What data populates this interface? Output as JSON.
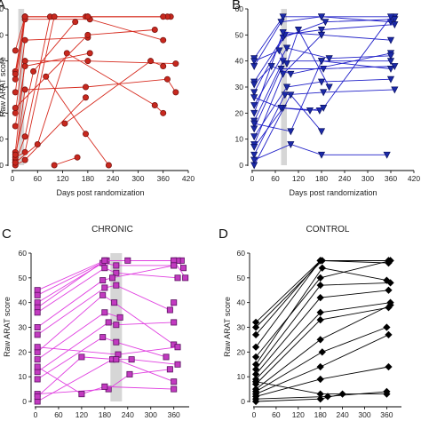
{
  "chart_data": [
    {
      "panel": "A",
      "type": "line",
      "title": "",
      "xlabel": "Days post randomization",
      "ylabel": "Raw ARAT score",
      "xlim": [
        0,
        420
      ],
      "ylim": [
        0,
        60
      ],
      "xticks": [
        0,
        60,
        120,
        180,
        240,
        300,
        360,
        420
      ],
      "yticks": [
        0,
        10,
        20,
        30,
        40,
        50,
        60
      ],
      "shaded_band": [
        14,
        28
      ],
      "marker": "circle",
      "color": "#d62a1e",
      "marker_fill": "#c8281e",
      "marker_edge": "#7a1410",
      "series": [
        {
          "x": [
            7,
            30,
            175,
            378
          ],
          "y": [
            44,
            57,
            57,
            57
          ]
        },
        {
          "x": [
            7,
            30,
            180,
            370
          ],
          "y": [
            36,
            57,
            57,
            57
          ]
        },
        {
          "x": [
            7,
            30,
            180,
            360
          ],
          "y": [
            33,
            57,
            57,
            57
          ]
        },
        {
          "x": [
            7,
            30,
            185,
            360
          ],
          "y": [
            28,
            56,
            56,
            48
          ]
        },
        {
          "x": [
            7,
            30,
            180
          ],
          "y": [
            20,
            48,
            49
          ]
        },
        {
          "x": [
            7,
            30,
            185
          ],
          "y": [
            15,
            38,
            43
          ]
        },
        {
          "x": [
            7,
            30,
            180,
            390
          ],
          "y": [
            5,
            40,
            40,
            39
          ]
        },
        {
          "x": [
            7,
            30,
            175,
            370,
            390
          ],
          "y": [
            2,
            29,
            30,
            33,
            28
          ]
        },
        {
          "x": [
            7,
            30,
            90,
            180
          ],
          "y": [
            1,
            11,
            57,
            57
          ]
        },
        {
          "x": [
            7,
            30,
            100
          ],
          "y": [
            3,
            5,
            57
          ]
        },
        {
          "x": [
            7,
            30
          ],
          "y": [
            35,
            57
          ]
        },
        {
          "x": [
            7,
            30,
            175
          ],
          "y": [
            0,
            2,
            26
          ]
        },
        {
          "x": [
            7,
            60,
            130,
            340,
            360
          ],
          "y": [
            1,
            8,
            43,
            23,
            20
          ]
        },
        {
          "x": [
            7,
            50,
            150
          ],
          "y": [
            4,
            36,
            55
          ]
        },
        {
          "x": [
            80,
            175,
            230
          ],
          "y": [
            34,
            12,
            0
          ]
        },
        {
          "x": [
            100,
            155
          ],
          "y": [
            0,
            3
          ]
        },
        {
          "x": [
            125,
            330,
            360
          ],
          "y": [
            16,
            40,
            38
          ]
        },
        {
          "x": [
            7,
            180,
            340
          ],
          "y": [
            22,
            50,
            52
          ]
        }
      ]
    },
    {
      "panel": "B",
      "type": "line",
      "title": "",
      "xlabel": "Days post randomization",
      "ylabel": "Raw ARAT score",
      "xlim": [
        0,
        420
      ],
      "ylim": [
        0,
        60
      ],
      "xticks": [
        0,
        60,
        120,
        180,
        240,
        300,
        360,
        420
      ],
      "yticks": [
        0,
        10,
        20,
        30,
        40,
        50,
        60
      ],
      "shaded_band": [
        75,
        90
      ],
      "marker": "triangle-down",
      "color": "#2020c8",
      "marker_fill": "#1b2aa8",
      "marker_edge": "#0a1060",
      "series": [
        {
          "x": [
            5,
            80,
            180,
            370
          ],
          "y": [
            41,
            57,
            57,
            57
          ]
        },
        {
          "x": [
            5,
            75,
            180,
            360
          ],
          "y": [
            38,
            55,
            57,
            55
          ]
        },
        {
          "x": [
            5,
            80,
            190,
            370
          ],
          "y": [
            32,
            49,
            55,
            56
          ]
        },
        {
          "x": [
            5,
            85,
            180,
            370
          ],
          "y": [
            28,
            50,
            52,
            54
          ]
        },
        {
          "x": [
            5,
            80,
            180,
            360
          ],
          "y": [
            20,
            51,
            50,
            48
          ]
        },
        {
          "x": [
            5,
            80,
            180,
            360
          ],
          "y": [
            17,
            40,
            40,
            40
          ]
        },
        {
          "x": [
            5,
            75,
            185,
            370
          ],
          "y": [
            14,
            37,
            37,
            38
          ]
        },
        {
          "x": [
            5,
            90,
            180,
            360
          ],
          "y": [
            11,
            30,
            32,
            33
          ]
        },
        {
          "x": [
            5,
            80,
            180
          ],
          "y": [
            8,
            35,
            50
          ]
        },
        {
          "x": [
            5,
            85,
            185,
            370
          ],
          "y": [
            4,
            27,
            28,
            29
          ]
        },
        {
          "x": [
            5,
            100,
            180
          ],
          "y": [
            0,
            27,
            13
          ]
        },
        {
          "x": [
            5,
            80,
            175
          ],
          "y": [
            7,
            22,
            21
          ]
        },
        {
          "x": [
            5,
            100,
            180,
            350
          ],
          "y": [
            2,
            8,
            4,
            4
          ]
        },
        {
          "x": [
            5,
            70,
            90,
            120,
            200
          ],
          "y": [
            40,
            44,
            39,
            52,
            30
          ]
        },
        {
          "x": [
            5,
            50,
            100,
            360
          ],
          "y": [
            31,
            38,
            35,
            43
          ]
        },
        {
          "x": [
            5,
            90,
            200,
            360
          ],
          "y": [
            23,
            45,
            41,
            42
          ]
        },
        {
          "x": [
            5,
            100,
            180,
            360
          ],
          "y": [
            16,
            13,
            40,
            37
          ]
        },
        {
          "x": [
            5,
            75,
            150,
            185,
            360
          ],
          "y": [
            26,
            22,
            21,
            22,
            57
          ]
        }
      ]
    },
    {
      "panel": "C",
      "title": "CHRONIC",
      "type": "line",
      "xlabel": "",
      "ylabel": "Raw ARAT score",
      "xlim": [
        0,
        400
      ],
      "ylim": [
        0,
        60
      ],
      "xticks": [
        0,
        60,
        120,
        180,
        240,
        300,
        360
      ],
      "yticks": [
        0,
        10,
        20,
        30,
        40,
        50,
        60
      ],
      "shaded_band": [
        195,
        225
      ],
      "marker": "square",
      "color": "#e040e0",
      "marker_fill": "#c23ac0",
      "marker_edge": "#5a1060",
      "series": [
        {
          "x": [
            5,
            180,
            360,
            380
          ],
          "y": [
            45,
            57,
            57,
            57
          ]
        },
        {
          "x": [
            5,
            185,
            370,
            385
          ],
          "y": [
            43,
            57,
            57,
            54
          ]
        },
        {
          "x": [
            5,
            175,
            210,
            360
          ],
          "y": [
            40,
            56,
            55,
            55
          ]
        },
        {
          "x": [
            5,
            180,
            240,
            360,
            390
          ],
          "y": [
            38,
            57,
            57,
            57,
            50
          ]
        },
        {
          "x": [
            5,
            180,
            210,
            370
          ],
          "y": [
            36,
            54,
            52,
            50
          ]
        },
        {
          "x": [
            5,
            175,
            200,
            360
          ],
          "y": [
            30,
            49,
            50,
            55
          ]
        },
        {
          "x": [
            5,
            180,
            210,
            350,
            360
          ],
          "y": [
            27,
            46,
            47,
            37,
            40
          ]
        },
        {
          "x": [
            5,
            175,
            205,
            360
          ],
          "y": [
            20,
            43,
            40,
            23
          ]
        },
        {
          "x": [
            5,
            180,
            220
          ],
          "y": [
            17,
            36,
            34
          ]
        },
        {
          "x": [
            5,
            190,
            210,
            360
          ],
          "y": [
            12,
            32,
            31,
            32
          ]
        },
        {
          "x": [
            5,
            175,
            210,
            340
          ],
          "y": [
            9,
            26,
            24,
            18
          ]
        },
        {
          "x": [
            5,
            190,
            245,
            350
          ],
          "y": [
            3,
            5,
            11,
            13
          ]
        },
        {
          "x": [
            5,
            200,
            250,
            370
          ],
          "y": [
            0,
            17,
            17,
            15
          ]
        },
        {
          "x": [
            5,
            215,
            370
          ],
          "y": [
            22,
            19,
            22
          ]
        },
        {
          "x": [
            5,
            120,
            180,
            360
          ],
          "y": [
            14,
            3,
            6,
            5
          ]
        },
        {
          "x": [
            5,
            120,
            210,
            360
          ],
          "y": [
            2,
            18,
            17,
            8
          ]
        }
      ]
    },
    {
      "panel": "D",
      "title": "CONTROL",
      "type": "line",
      "xlabel": "",
      "ylabel": "Raw ARAT score",
      "xlim": [
        0,
        400
      ],
      "ylim": [
        0,
        60
      ],
      "xticks": [
        0,
        60,
        120,
        180,
        240,
        300,
        360
      ],
      "yticks": [
        0,
        10,
        20,
        30,
        40,
        50,
        60
      ],
      "shaded_band": null,
      "marker": "diamond",
      "color": "#000000",
      "marker_fill": "#000000",
      "marker_edge": "#000000",
      "series": [
        {
          "x": [
            5,
            180,
            365
          ],
          "y": [
            32,
            57,
            57
          ]
        },
        {
          "x": [
            5,
            185,
            370
          ],
          "y": [
            30,
            57,
            57
          ]
        },
        {
          "x": [
            5,
            180,
            365
          ],
          "y": [
            27,
            57,
            57
          ]
        },
        {
          "x": [
            5,
            180,
            365
          ],
          "y": [
            22,
            57,
            56
          ]
        },
        {
          "x": [
            5,
            180,
            370
          ],
          "y": [
            18,
            50,
            57
          ]
        },
        {
          "x": [
            5,
            185,
            360
          ],
          "y": [
            15,
            54,
            49
          ]
        },
        {
          "x": [
            5,
            180,
            370
          ],
          "y": [
            13,
            47,
            48
          ]
        },
        {
          "x": [
            5,
            180,
            365
          ],
          "y": [
            11,
            42,
            45
          ]
        },
        {
          "x": [
            5,
            180,
            370
          ],
          "y": [
            9,
            36,
            40
          ]
        },
        {
          "x": [
            5,
            180,
            365
          ],
          "y": [
            7,
            33,
            38
          ]
        },
        {
          "x": [
            5,
            180,
            370
          ],
          "y": [
            5,
            25,
            39
          ]
        },
        {
          "x": [
            5,
            185,
            360
          ],
          "y": [
            4,
            20,
            30
          ]
        },
        {
          "x": [
            5,
            180,
            365
          ],
          "y": [
            3,
            14,
            27
          ]
        },
        {
          "x": [
            5,
            180,
            365
          ],
          "y": [
            2,
            9,
            14
          ]
        },
        {
          "x": [
            5,
            200,
            360
          ],
          "y": [
            1,
            2,
            4
          ]
        },
        {
          "x": [
            5,
            180,
            240
          ],
          "y": [
            0,
            1,
            3
          ]
        },
        {
          "x": [
            5,
            180,
            360
          ],
          "y": [
            8,
            3,
            3
          ]
        }
      ]
    }
  ]
}
